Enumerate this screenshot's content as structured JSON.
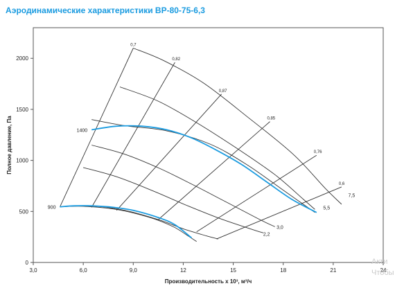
{
  "title": "Аэродинамические характеристики ВР-80-75-6,3",
  "title_color": "#1a9be0",
  "watermark": {
    "line1": "Акти",
    "line2": "Чтобы"
  },
  "chart_data": {
    "type": "line",
    "title": "Аэродинамические характеристики ВР-80-75-6,3",
    "xlabel": "Производительность х 10³, м³/ч",
    "ylabel": "Полное давление, Па",
    "xlim": [
      3.0,
      24
    ],
    "ylim": [
      0,
      2300
    ],
    "xticks": [
      3.0,
      6.0,
      9.0,
      12,
      15,
      18,
      21,
      24
    ],
    "xtick_labels": [
      "3,0",
      "6,0",
      "9,0",
      "12",
      "15",
      "18",
      "21",
      "24"
    ],
    "yticks": [
      0,
      500,
      1000,
      1500,
      2000
    ],
    "ytick_labels": [
      "0",
      "500",
      "1000",
      "1500",
      "2000"
    ],
    "grid": false,
    "highlight_color": "#1a9be0",
    "grid_color": "#333333",
    "speed_curves": [
      {
        "points": [
          [
            9.0,
            2100
          ],
          [
            10.8,
            1980
          ],
          [
            13.2,
            1760
          ],
          [
            15.9,
            1420
          ],
          [
            18.6,
            1060
          ],
          [
            20.5,
            730
          ],
          [
            21.5,
            570
          ]
        ]
      },
      {
        "points": [
          [
            8.2,
            1720
          ],
          [
            10.5,
            1580
          ],
          [
            12.8,
            1370
          ],
          [
            15.2,
            1120
          ],
          [
            17.5,
            860
          ],
          [
            19.2,
            620
          ],
          [
            19.9,
            520
          ]
        ]
      },
      {
        "points": [
          [
            6.5,
            1400
          ],
          [
            8.5,
            1340
          ],
          [
            11.0,
            1290
          ],
          [
            13.6,
            1160
          ],
          [
            15.8,
            960
          ],
          [
            17.9,
            720
          ],
          [
            19.9,
            490
          ]
        ]
      },
      {
        "points": [
          [
            6.5,
            1150
          ],
          [
            8.5,
            1060
          ],
          [
            10.6,
            920
          ],
          [
            12.6,
            760
          ],
          [
            14.6,
            590
          ],
          [
            16.6,
            420
          ],
          [
            17.5,
            350
          ]
        ]
      },
      {
        "points": [
          [
            6.0,
            930
          ],
          [
            8.0,
            840
          ],
          [
            10.2,
            700
          ],
          [
            12.2,
            560
          ],
          [
            14.2,
            430
          ],
          [
            16.2,
            320
          ],
          [
            16.8,
            290
          ]
        ]
      },
      {
        "points": [
          [
            4.6,
            545
          ],
          [
            6.5,
            555
          ],
          [
            8.5,
            510
          ],
          [
            10.5,
            420
          ],
          [
            12.0,
            330
          ],
          [
            13.4,
            260
          ],
          [
            14.1,
            230
          ]
        ]
      },
      {
        "points": [
          [
            4.6,
            545
          ],
          [
            6.0,
            550
          ],
          [
            8.0,
            520
          ],
          [
            10.0,
            440
          ],
          [
            11.4,
            350
          ],
          [
            12.2,
            270
          ],
          [
            12.8,
            205
          ]
        ]
      }
    ],
    "efficiency_lines": [
      {
        "label": "0,7",
        "points": [
          [
            4.6,
            545
          ],
          [
            9.0,
            2100
          ]
        ]
      },
      {
        "label": "0,82",
        "points": [
          [
            6.5,
            540
          ],
          [
            11.5,
            1960
          ]
        ]
      },
      {
        "label": "0,87",
        "points": [
          [
            8.0,
            510
          ],
          [
            14.3,
            1650
          ]
        ]
      },
      {
        "label": "0,85",
        "points": [
          [
            10.5,
            420
          ],
          [
            17.2,
            1380
          ]
        ]
      },
      {
        "label": "0,76",
        "points": [
          [
            12.8,
            300
          ],
          [
            20.0,
            1050
          ]
        ]
      },
      {
        "label": "0,6",
        "points": [
          [
            14.0,
            230
          ],
          [
            21.5,
            740
          ]
        ]
      }
    ],
    "highlighted_curves": [
      {
        "name": "1400",
        "label": "1400",
        "points": [
          [
            6.5,
            1300
          ],
          [
            8.0,
            1335
          ],
          [
            9.5,
            1335
          ],
          [
            11.0,
            1300
          ],
          [
            12.5,
            1220
          ],
          [
            14.0,
            1100
          ],
          [
            15.5,
            960
          ],
          [
            17.0,
            790
          ],
          [
            18.5,
            620
          ],
          [
            20.0,
            490
          ]
        ]
      },
      {
        "name": "900",
        "label": "900",
        "points": [
          [
            4.6,
            545
          ],
          [
            5.5,
            555
          ],
          [
            6.5,
            555
          ],
          [
            7.8,
            540
          ],
          [
            9.0,
            510
          ],
          [
            10.5,
            440
          ],
          [
            11.5,
            370
          ],
          [
            12.5,
            240
          ]
        ]
      }
    ],
    "curve_labels": [
      {
        "text": "7,5",
        "x": 21.9,
        "y": 640
      },
      {
        "text": "5,5",
        "x": 20.4,
        "y": 520
      },
      {
        "text": "3,0",
        "x": 17.6,
        "y": 330
      },
      {
        "text": "2,2",
        "x": 16.8,
        "y": 260
      }
    ]
  }
}
